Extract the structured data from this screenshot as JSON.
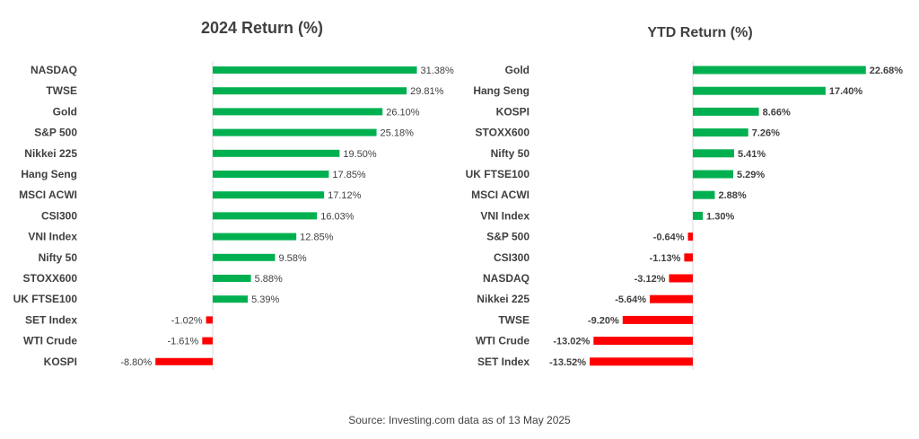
{
  "chart_data": [
    {
      "type": "bar",
      "orientation": "horizontal",
      "title": "2024 Return (%)",
      "categories": [
        "NASDAQ",
        "TWSE",
        "Gold",
        "S&P 500",
        "Nikkei 225",
        "Hang Seng",
        "MSCI ACWI",
        "CSI300",
        "VNI Index",
        "Nifty 50",
        "STOXX600",
        "UK FTSE100",
        "SET Index",
        "WTI Crude",
        "KOSPI"
      ],
      "values": [
        31.38,
        29.81,
        26.1,
        25.18,
        19.5,
        17.85,
        17.12,
        16.03,
        12.85,
        9.58,
        5.88,
        5.39,
        -1.02,
        -1.61,
        -8.8
      ],
      "value_labels": [
        "31.38%",
        "29.81%",
        "26.10%",
        "25.18%",
        "19.50%",
        "17.85%",
        "17.12%",
        "16.03%",
        "12.85%",
        "9.58%",
        "5.88%",
        "5.39%",
        "-1.02%",
        "-1.61%",
        "-8.80%"
      ],
      "xlabel": "",
      "ylabel": "",
      "grid": false,
      "colors": {
        "positive": "#00b050",
        "negative": "#ff0000"
      }
    },
    {
      "type": "bar",
      "orientation": "horizontal",
      "title": "YTD Return (%)",
      "categories": [
        "Gold",
        "Hang Seng",
        "KOSPI",
        "STOXX600",
        "Nifty 50",
        "UK FTSE100",
        "MSCI ACWI",
        "VNI Index",
        "S&P 500",
        "CSI300",
        "NASDAQ",
        "Nikkei 225",
        "TWSE",
        "WTI Crude",
        "SET Index"
      ],
      "values": [
        22.68,
        17.4,
        8.66,
        7.26,
        5.41,
        5.29,
        2.88,
        1.3,
        -0.64,
        -1.13,
        -3.12,
        -5.64,
        -9.2,
        -13.02,
        -13.52
      ],
      "value_labels": [
        "22.68%",
        "17.40%",
        "8.66%",
        "7.26%",
        "5.41%",
        "5.29%",
        "2.88%",
        "1.30%",
        "-0.64%",
        "-1.13%",
        "-3.12%",
        "-5.64%",
        "-9.20%",
        "-13.02%",
        "-13.52%"
      ],
      "xlabel": "",
      "ylabel": "",
      "grid": false,
      "colors": {
        "positive": "#00b050",
        "negative": "#ff0000"
      }
    }
  ],
  "source": "Source: Investing.com data as of  13 May 2025"
}
